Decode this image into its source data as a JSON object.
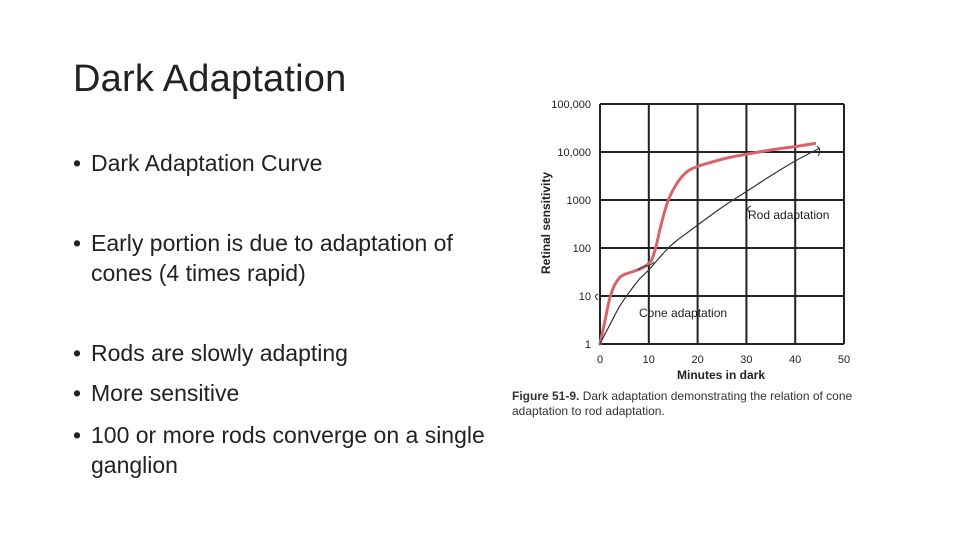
{
  "slide": {
    "title": "Dark Adaptation",
    "bullets": [
      "Dark Adaptation Curve",
      "Early portion is due to adaptation of cones (4 times rapid)",
      "Rods are slowly adapting",
      "More sensitive",
      "100 or more rods converge on a single ganglion"
    ]
  },
  "caption": {
    "figure_label": "Figure 51-9.",
    "text": "Dark adaptation demonstrating the relation of cone adaptation to rod adaptation."
  },
  "colors": {
    "cone_rod_curve": "#d9636b",
    "rod_curve": "#333333",
    "grid": "#222222"
  },
  "chart_data": {
    "type": "line",
    "xlabel": "Minutes in dark",
    "ylabel": "Retinal sensitivity",
    "xlim": [
      0,
      50
    ],
    "ylim": [
      1,
      100000
    ],
    "yscale": "log",
    "grid": true,
    "xticks": [
      0,
      10,
      20,
      30,
      40,
      50
    ],
    "xtick_labels": [
      "0",
      "10",
      "20",
      "30",
      "40",
      "50"
    ],
    "yticks": [
      1,
      10,
      100,
      1000,
      10000,
      100000
    ],
    "ytick_labels": [
      "1",
      "10",
      "100",
      "1000",
      "10,000",
      "100,000"
    ],
    "series": [
      {
        "x": [
          0,
          1,
          2,
          3,
          4,
          5,
          7,
          9,
          10.5,
          11.5,
          12.5,
          14,
          16,
          18,
          20,
          23,
          26,
          30,
          35,
          40,
          44
        ],
        "y": [
          1,
          3,
          9,
          17,
          24,
          28,
          33,
          40,
          55,
          110,
          300,
          1000,
          2400,
          4000,
          5000,
          6200,
          7500,
          9000,
          11000,
          13000,
          15000
        ]
      },
      {
        "x": [
          0,
          2,
          4,
          6,
          8,
          10,
          12,
          14,
          16,
          20,
          25,
          30,
          35,
          40,
          45
        ],
        "y": [
          1,
          2.5,
          6,
          12,
          22,
          35,
          60,
          100,
          150,
          300,
          700,
          1500,
          3200,
          6500,
          12000
        ]
      }
    ],
    "annotations": [
      "Rod adaptation",
      "Cone adaptation"
    ]
  }
}
